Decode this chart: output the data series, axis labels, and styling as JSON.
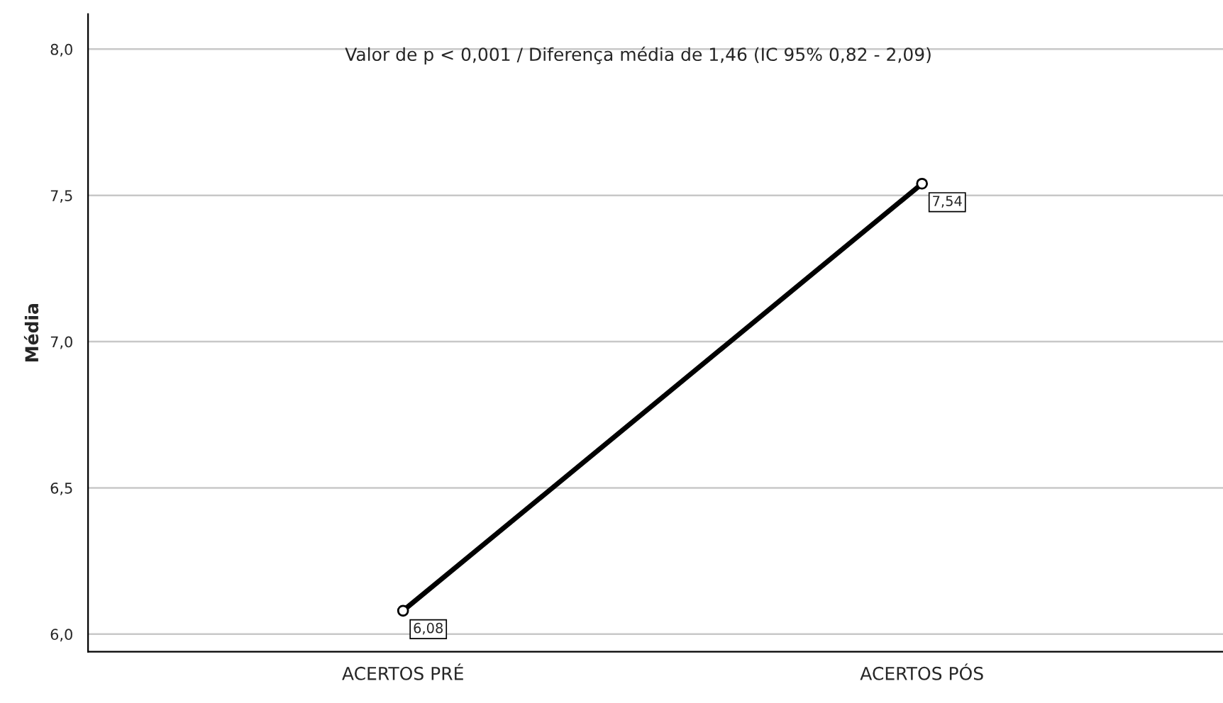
{
  "chart_data": {
    "type": "line",
    "ylabel": "Média",
    "categories": [
      "ACERTOS PRÉ",
      "ACERTOS PÓS"
    ],
    "series": [
      {
        "color": "#000000",
        "values": [
          6.08,
          7.54
        ],
        "value_labels": [
          "6,08",
          "7,54"
        ]
      }
    ],
    "ylim": [
      5.94,
      8.12
    ],
    "yticks": [
      {
        "value": 6.0,
        "label": "6,0"
      },
      {
        "value": 6.5,
        "label": "6,5"
      },
      {
        "value": 7.0,
        "label": "7,0"
      },
      {
        "value": 7.5,
        "label": "7,5"
      },
      {
        "value": 8.0,
        "label": "8,0"
      }
    ],
    "grid": "y",
    "legend": false,
    "marker": "circle",
    "line_style": "solid",
    "annotations": [
      "Valor de p < 0,001 / Diferença média de 1,46 (IC 95% 0,82 - 2,09)"
    ]
  }
}
